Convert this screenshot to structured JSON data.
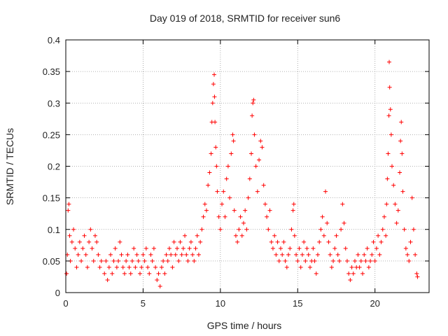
{
  "chart_data": {
    "type": "scatter",
    "title": "Day 019 of 2018, SRMTID for receiver sun6",
    "xlabel": "GPS time / hours",
    "ylabel": "SRMTID / TECUs",
    "xlim": [
      0,
      23.5
    ],
    "ylim": [
      0,
      0.4
    ],
    "xticks": [
      0,
      5,
      10,
      15,
      20
    ],
    "yticks": [
      0,
      0.05,
      0.1,
      0.15,
      0.2,
      0.25,
      0.3,
      0.35,
      0.4
    ],
    "grid": true,
    "marker": "+",
    "color": "#ff0000",
    "series": [
      {
        "name": "sun6",
        "points": [
          [
            0.05,
            0.03
          ],
          [
            0.1,
            0.06
          ],
          [
            0.15,
            0.13
          ],
          [
            0.2,
            0.14
          ],
          [
            0.25,
            0.09
          ],
          [
            0.3,
            0.05
          ],
          [
            0.4,
            0.08
          ],
          [
            0.5,
            0.1
          ],
          [
            0.6,
            0.07
          ],
          [
            0.7,
            0.04
          ],
          [
            0.8,
            0.06
          ],
          [
            0.9,
            0.08
          ],
          [
            1.0,
            0.05
          ],
          [
            1.1,
            0.07
          ],
          [
            1.2,
            0.09
          ],
          [
            1.3,
            0.06
          ],
          [
            1.4,
            0.04
          ],
          [
            1.5,
            0.08
          ],
          [
            1.6,
            0.1
          ],
          [
            1.7,
            0.07
          ],
          [
            1.8,
            0.05
          ],
          [
            1.9,
            0.09
          ],
          [
            2.0,
            0.08
          ],
          [
            2.1,
            0.06
          ],
          [
            2.2,
            0.04
          ],
          [
            2.3,
            0.05
          ],
          [
            2.5,
            0.03
          ],
          [
            2.6,
            0.05
          ],
          [
            2.7,
            0.02
          ],
          [
            2.8,
            0.04
          ],
          [
            2.9,
            0.06
          ],
          [
            3.0,
            0.03
          ],
          [
            3.1,
            0.05
          ],
          [
            3.2,
            0.07
          ],
          [
            3.3,
            0.04
          ],
          [
            3.4,
            0.05
          ],
          [
            3.5,
            0.08
          ],
          [
            3.6,
            0.06
          ],
          [
            3.7,
            0.04
          ],
          [
            3.8,
            0.03
          ],
          [
            3.9,
            0.05
          ],
          [
            4.0,
            0.06
          ],
          [
            4.1,
            0.04
          ],
          [
            4.2,
            0.03
          ],
          [
            4.3,
            0.05
          ],
          [
            4.4,
            0.07
          ],
          [
            4.5,
            0.04
          ],
          [
            4.6,
            0.06
          ],
          [
            4.7,
            0.05
          ],
          [
            4.8,
            0.03
          ],
          [
            4.9,
            0.04
          ],
          [
            5.0,
            0.06
          ],
          [
            5.1,
            0.05
          ],
          [
            5.2,
            0.07
          ],
          [
            5.3,
            0.04
          ],
          [
            5.4,
            0.03
          ],
          [
            5.5,
            0.06
          ],
          [
            5.6,
            0.05
          ],
          [
            5.7,
            0.07
          ],
          [
            5.8,
            0.04
          ],
          [
            5.9,
            0.02
          ],
          [
            6.0,
            0.03
          ],
          [
            6.1,
            0.01
          ],
          [
            6.2,
            0.04
          ],
          [
            6.3,
            0.05
          ],
          [
            6.4,
            0.03
          ],
          [
            6.5,
            0.06
          ],
          [
            6.6,
            0.05
          ],
          [
            6.7,
            0.07
          ],
          [
            6.8,
            0.06
          ],
          [
            6.9,
            0.04
          ],
          [
            7.0,
            0.08
          ],
          [
            7.1,
            0.06
          ],
          [
            7.2,
            0.07
          ],
          [
            7.3,
            0.05
          ],
          [
            7.4,
            0.08
          ],
          [
            7.5,
            0.06
          ],
          [
            7.6,
            0.07
          ],
          [
            7.7,
            0.09
          ],
          [
            7.8,
            0.06
          ],
          [
            7.9,
            0.05
          ],
          [
            8.0,
            0.07
          ],
          [
            8.1,
            0.08
          ],
          [
            8.2,
            0.06
          ],
          [
            8.3,
            0.05
          ],
          [
            8.4,
            0.07
          ],
          [
            8.5,
            0.09
          ],
          [
            8.6,
            0.06
          ],
          [
            8.7,
            0.08
          ],
          [
            8.8,
            0.1
          ],
          [
            8.9,
            0.12
          ],
          [
            9.0,
            0.14
          ],
          [
            9.1,
            0.13
          ],
          [
            9.2,
            0.17
          ],
          [
            9.3,
            0.19
          ],
          [
            9.4,
            0.22
          ],
          [
            9.45,
            0.27
          ],
          [
            9.5,
            0.3
          ],
          [
            9.55,
            0.33
          ],
          [
            9.6,
            0.345
          ],
          [
            9.62,
            0.31
          ],
          [
            9.65,
            0.27
          ],
          [
            9.7,
            0.23
          ],
          [
            9.75,
            0.2
          ],
          [
            9.8,
            0.16
          ],
          [
            9.9,
            0.12
          ],
          [
            10.0,
            0.1
          ],
          [
            10.1,
            0.14
          ],
          [
            10.2,
            0.16
          ],
          [
            10.3,
            0.12
          ],
          [
            10.4,
            0.18
          ],
          [
            10.5,
            0.2
          ],
          [
            10.6,
            0.15
          ],
          [
            10.7,
            0.22
          ],
          [
            10.8,
            0.25
          ],
          [
            10.85,
            0.24
          ],
          [
            10.9,
            0.13
          ],
          [
            11.0,
            0.09
          ],
          [
            11.1,
            0.08
          ],
          [
            11.2,
            0.1
          ],
          [
            11.3,
            0.12
          ],
          [
            11.4,
            0.09
          ],
          [
            11.5,
            0.11
          ],
          [
            11.6,
            0.13
          ],
          [
            11.7,
            0.1
          ],
          [
            11.8,
            0.15
          ],
          [
            11.9,
            0.18
          ],
          [
            12.0,
            0.22
          ],
          [
            12.05,
            0.28
          ],
          [
            12.1,
            0.3
          ],
          [
            12.15,
            0.305
          ],
          [
            12.2,
            0.25
          ],
          [
            12.3,
            0.2
          ],
          [
            12.4,
            0.16
          ],
          [
            12.5,
            0.21
          ],
          [
            12.6,
            0.24
          ],
          [
            12.7,
            0.23
          ],
          [
            12.8,
            0.17
          ],
          [
            12.9,
            0.14
          ],
          [
            13.0,
            0.12
          ],
          [
            13.1,
            0.1
          ],
          [
            13.2,
            0.13
          ],
          [
            13.3,
            0.08
          ],
          [
            13.4,
            0.07
          ],
          [
            13.5,
            0.09
          ],
          [
            13.6,
            0.06
          ],
          [
            13.7,
            0.08
          ],
          [
            13.8,
            0.05
          ],
          [
            13.9,
            0.07
          ],
          [
            14.0,
            0.06
          ],
          [
            14.1,
            0.08
          ],
          [
            14.2,
            0.05
          ],
          [
            14.3,
            0.04
          ],
          [
            14.4,
            0.06
          ],
          [
            14.5,
            0.07
          ],
          [
            14.6,
            0.1
          ],
          [
            14.7,
            0.13
          ],
          [
            14.75,
            0.14
          ],
          [
            14.8,
            0.09
          ],
          [
            14.9,
            0.06
          ],
          [
            15.0,
            0.05
          ],
          [
            15.1,
            0.07
          ],
          [
            15.2,
            0.04
          ],
          [
            15.3,
            0.06
          ],
          [
            15.4,
            0.08
          ],
          [
            15.5,
            0.05
          ],
          [
            15.6,
            0.07
          ],
          [
            15.7,
            0.06
          ],
          [
            15.8,
            0.04
          ],
          [
            15.9,
            0.05
          ],
          [
            16.0,
            0.07
          ],
          [
            16.1,
            0.05
          ],
          [
            16.2,
            0.03
          ],
          [
            16.3,
            0.06
          ],
          [
            16.4,
            0.08
          ],
          [
            16.5,
            0.1
          ],
          [
            16.6,
            0.12
          ],
          [
            16.7,
            0.09
          ],
          [
            16.8,
            0.16
          ],
          [
            16.9,
            0.11
          ],
          [
            17.0,
            0.08
          ],
          [
            17.1,
            0.06
          ],
          [
            17.2,
            0.04
          ],
          [
            17.3,
            0.05
          ],
          [
            17.4,
            0.07
          ],
          [
            17.5,
            0.09
          ],
          [
            17.6,
            0.06
          ],
          [
            17.7,
            0.05
          ],
          [
            17.8,
            0.1
          ],
          [
            17.9,
            0.14
          ],
          [
            18.0,
            0.11
          ],
          [
            18.1,
            0.07
          ],
          [
            18.2,
            0.05
          ],
          [
            18.3,
            0.03
          ],
          [
            18.4,
            0.02
          ],
          [
            18.5,
            0.04
          ],
          [
            18.6,
            0.03
          ],
          [
            18.7,
            0.05
          ],
          [
            18.8,
            0.04
          ],
          [
            18.9,
            0.06
          ],
          [
            19.0,
            0.04
          ],
          [
            19.1,
            0.05
          ],
          [
            19.2,
            0.03
          ],
          [
            19.3,
            0.06
          ],
          [
            19.4,
            0.05
          ],
          [
            19.5,
            0.07
          ],
          [
            19.6,
            0.04
          ],
          [
            19.7,
            0.05
          ],
          [
            19.8,
            0.06
          ],
          [
            19.9,
            0.08
          ],
          [
            20.0,
            0.05
          ],
          [
            20.1,
            0.07
          ],
          [
            20.2,
            0.09
          ],
          [
            20.3,
            0.06
          ],
          [
            20.4,
            0.08
          ],
          [
            20.5,
            0.1
          ],
          [
            20.6,
            0.12
          ],
          [
            20.7,
            0.09
          ],
          [
            20.75,
            0.14
          ],
          [
            20.8,
            0.18
          ],
          [
            20.85,
            0.22
          ],
          [
            20.9,
            0.28
          ],
          [
            20.92,
            0.365
          ],
          [
            20.95,
            0.325
          ],
          [
            21.0,
            0.29
          ],
          [
            21.05,
            0.25
          ],
          [
            21.1,
            0.2
          ],
          [
            21.2,
            0.17
          ],
          [
            21.3,
            0.14
          ],
          [
            21.4,
            0.11
          ],
          [
            21.5,
            0.13
          ],
          [
            21.6,
            0.19
          ],
          [
            21.65,
            0.24
          ],
          [
            21.7,
            0.27
          ],
          [
            21.75,
            0.22
          ],
          [
            21.8,
            0.16
          ],
          [
            21.9,
            0.1
          ],
          [
            22.0,
            0.07
          ],
          [
            22.1,
            0.06
          ],
          [
            22.2,
            0.05
          ],
          [
            22.3,
            0.08
          ],
          [
            22.4,
            0.15
          ],
          [
            22.5,
            0.1
          ],
          [
            22.6,
            0.06
          ],
          [
            22.7,
            0.03
          ],
          [
            22.75,
            0.025
          ]
        ]
      }
    ]
  }
}
